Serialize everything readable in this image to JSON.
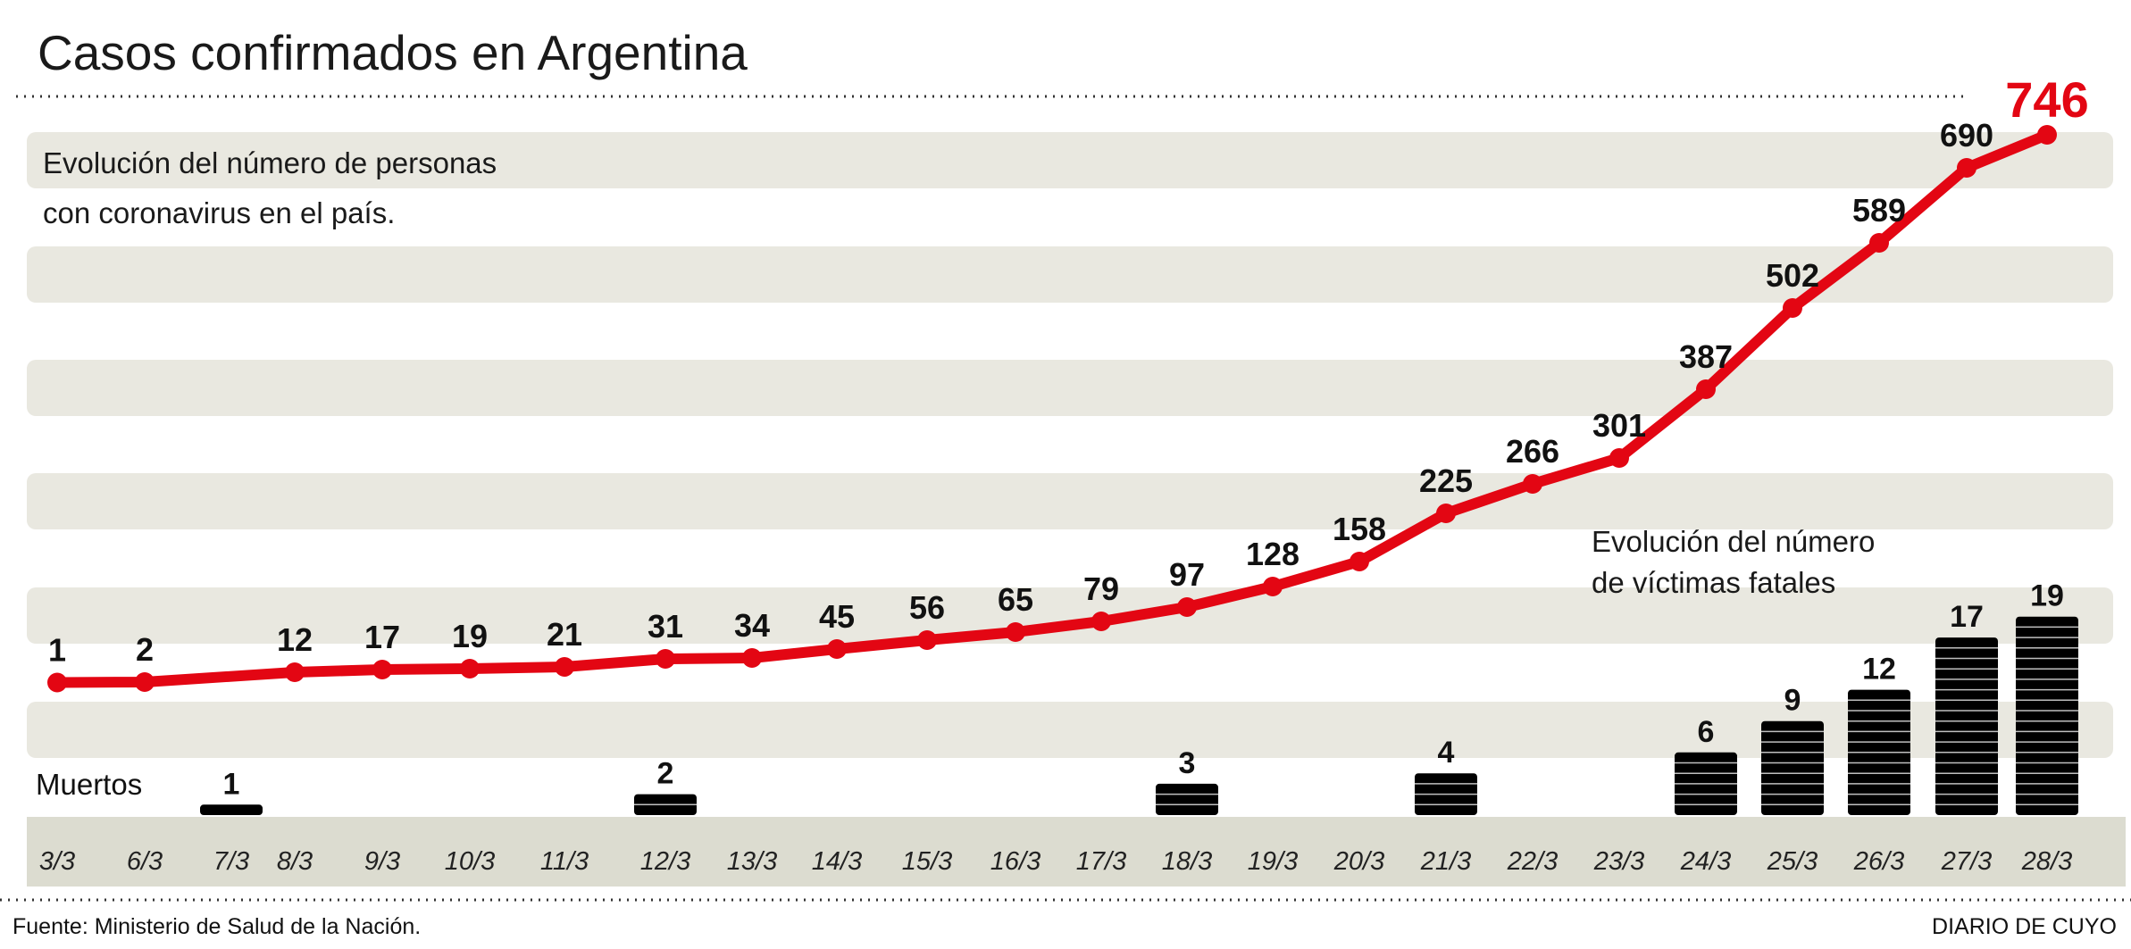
{
  "title": "Casos confirmados en Argentina",
  "source": "Fuente: Ministerio de Salud de la Nación.",
  "brand": "DIARIO DE CUYO",
  "colors": {
    "cases_line": "#e30613",
    "deaths_bar": "#000000",
    "band": "#e9e8e0",
    "axis_band": "#dcdcd0"
  },
  "chart_data": {
    "type": "line",
    "categories": [
      "3/3",
      "6/3",
      "7/3",
      "8/3",
      "9/3",
      "10/3",
      "11/3",
      "12/3",
      "13/3",
      "14/3",
      "15/3",
      "16/3",
      "17/3",
      "18/3",
      "19/3",
      "20/3",
      "21/3",
      "22/3",
      "23/3",
      "24/3",
      "25/3",
      "26/3",
      "27/3",
      "28/3"
    ],
    "cases_subtitle": [
      "Evolución del número de personas",
      "con coronavirus en el país."
    ],
    "deaths_subtitle": [
      "Evolución del número",
      "de víctimas fatales"
    ],
    "deaths_axis_label": "Muertos",
    "series": [
      {
        "type": "line",
        "x": [
          "3/3",
          "6/3",
          "8/3",
          "9/3",
          "10/3",
          "11/3",
          "12/3",
          "13/3",
          "14/3",
          "15/3",
          "16/3",
          "17/3",
          "18/3",
          "19/3",
          "20/3",
          "21/3",
          "22/3",
          "23/3",
          "24/3",
          "25/3",
          "26/3",
          "27/3",
          "28/3"
        ],
        "values": [
          1,
          2,
          12,
          17,
          19,
          21,
          31,
          34,
          45,
          56,
          65,
          79,
          97,
          128,
          158,
          225,
          266,
          301,
          387,
          502,
          589,
          690,
          746
        ]
      },
      {
        "type": "bar",
        "x": [
          "7/3",
          "12/3",
          "18/3",
          "21/3",
          "24/3",
          "25/3",
          "26/3",
          "27/3",
          "28/3"
        ],
        "values": [
          1,
          2,
          3,
          4,
          6,
          9,
          12,
          17,
          19
        ]
      }
    ]
  }
}
